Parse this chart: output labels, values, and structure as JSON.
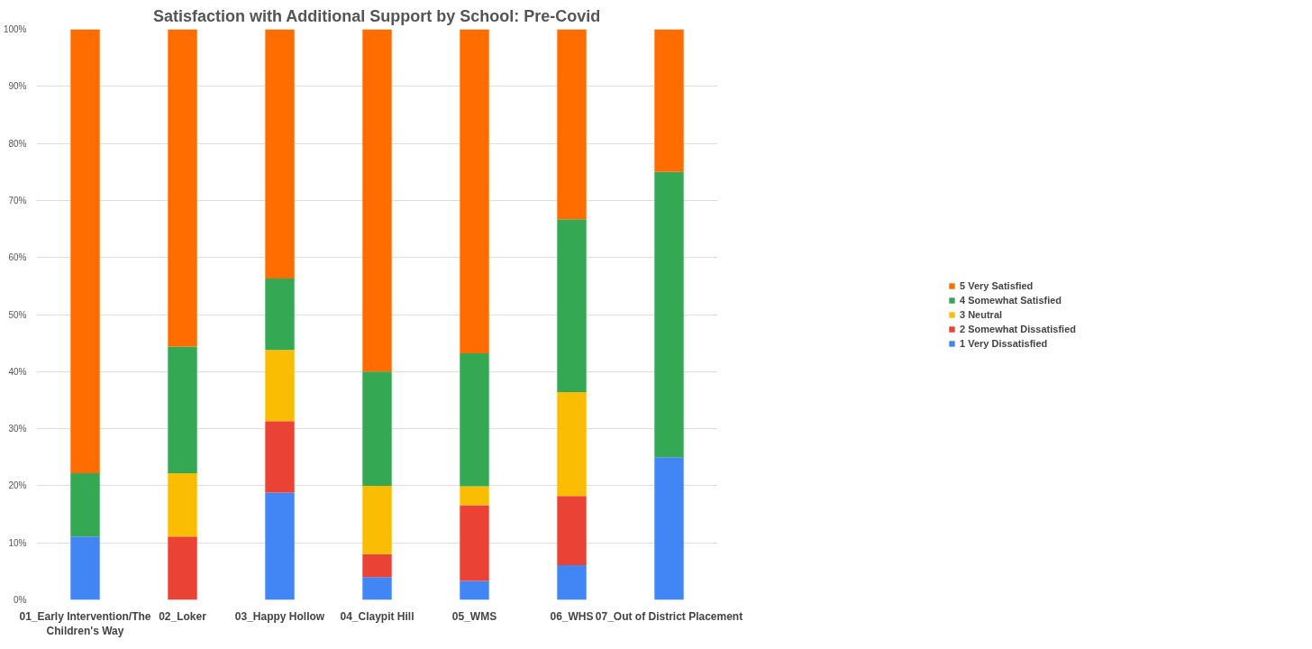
{
  "chart_data": {
    "type": "bar",
    "stacked": true,
    "title": "Satisfaction with Additional Support by School: Pre-Covid",
    "categories": [
      "01_Early Intervention/The Children's Way",
      "02_Loker",
      "03_Happy Hollow",
      "04_Claypit Hill",
      "05_WMS",
      "06_WHS",
      "07_Out of District Placement"
    ],
    "series": [
      {
        "name": "1 Very Dissatisfied",
        "color": "#4285f4",
        "values": [
          11.1,
          0,
          18.8,
          4,
          3.3,
          6.1,
          25
        ]
      },
      {
        "name": "2 Somewhat Dissatisfied",
        "color": "#ea4335",
        "values": [
          0,
          11.1,
          12.5,
          4,
          13.3,
          12.1,
          0
        ]
      },
      {
        "name": "3 Neutral",
        "color": "#fbbc04",
        "values": [
          0,
          11.1,
          12.5,
          12,
          3.3,
          18.2,
          0
        ]
      },
      {
        "name": "4 Somewhat Satisfied",
        "color": "#34a853",
        "values": [
          11.1,
          22.2,
          12.5,
          20,
          23.3,
          30.3,
          50
        ]
      },
      {
        "name": "5 Very Satisfied",
        "color": "#ff6d01",
        "values": [
          77.8,
          55.6,
          43.7,
          60,
          56.8,
          33.3,
          25
        ]
      }
    ],
    "ylim": [
      0,
      100
    ],
    "yticks": [
      {
        "value": 0,
        "label": "0%"
      },
      {
        "value": 10,
        "label": "10%"
      },
      {
        "value": 20,
        "label": "20%"
      },
      {
        "value": 30,
        "label": "30%"
      },
      {
        "value": 40,
        "label": "40%"
      },
      {
        "value": 50,
        "label": "50%"
      },
      {
        "value": 60,
        "label": "60%"
      },
      {
        "value": 70,
        "label": "70%"
      },
      {
        "value": 80,
        "label": "80%"
      },
      {
        "value": 90,
        "label": "90%"
      },
      {
        "value": 100,
        "label": "100%"
      }
    ],
    "grid": "y",
    "legend": "right"
  }
}
